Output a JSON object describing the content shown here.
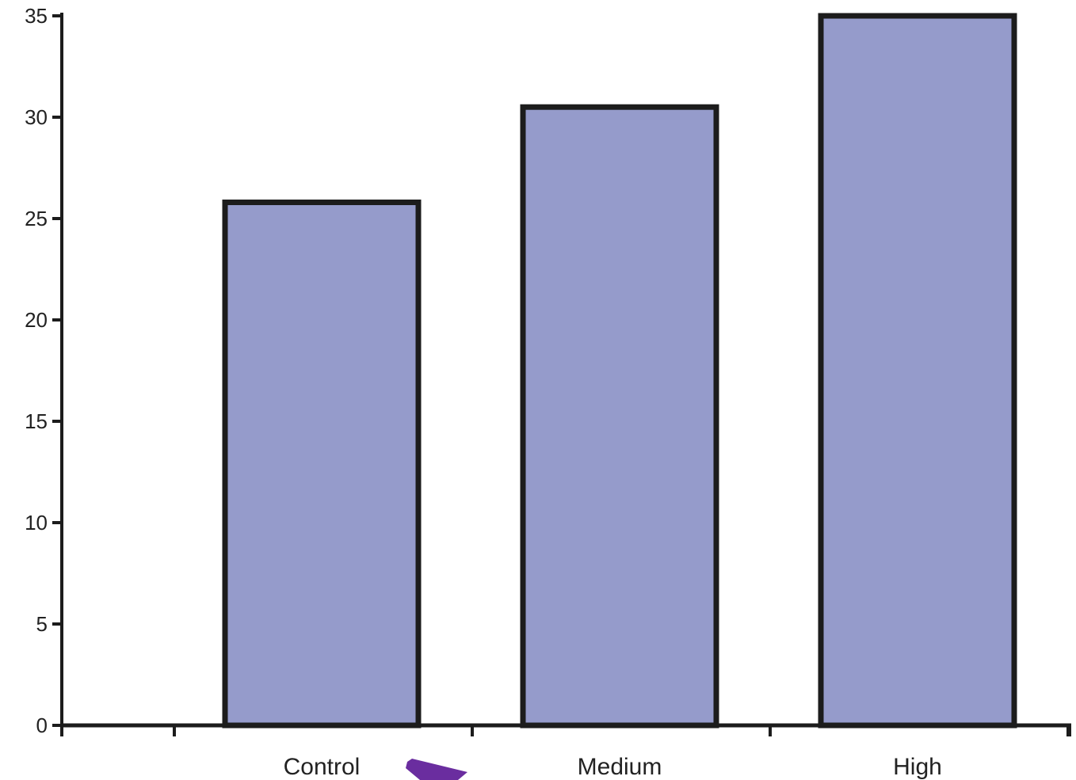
{
  "chart_data": {
    "type": "bar",
    "categories": [
      "Control",
      "Medium",
      "High"
    ],
    "values": [
      25.8,
      30.5,
      35
    ],
    "title": "",
    "xlabel": "",
    "ylabel": "",
    "ylim": [
      0,
      35
    ],
    "yticks": [
      0,
      5,
      10,
      15,
      20,
      25,
      30,
      35
    ],
    "grid": false,
    "legend": "none",
    "bar_color": "#959bcb",
    "bar_edge_color": "#1c1c1c",
    "axis_color": "#1c1c1c"
  },
  "annotations": {
    "arrow_color": "#6a2d9f",
    "arrow_icon": "arrow-marker-icon"
  }
}
